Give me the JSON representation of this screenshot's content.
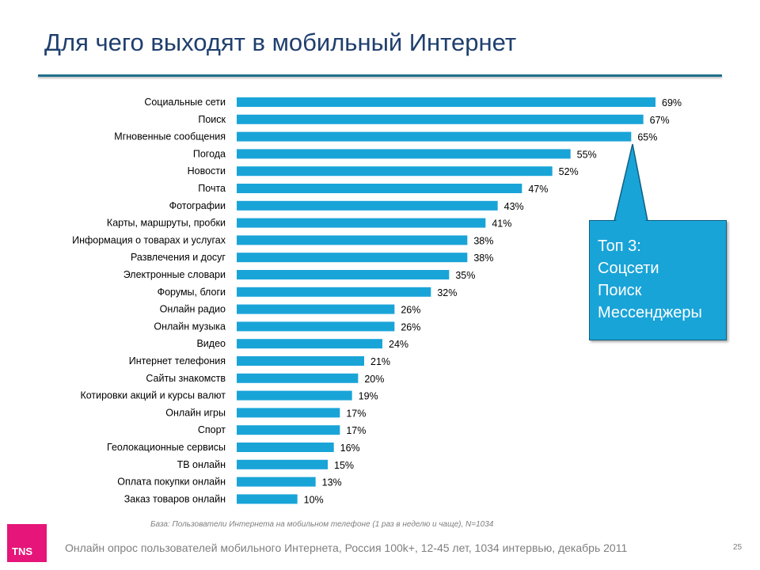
{
  "title": "Для чего выходят в мобильный Интернет",
  "chart_data": {
    "type": "bar",
    "orientation": "horizontal",
    "categories": [
      "Социальные сети",
      "Поиск",
      "Мгновенные сообщения",
      "Погода",
      "Новости",
      "Почта",
      "Фотографии",
      "Карты, маршруты, пробки",
      "Информация о товарах и услугах",
      "Развлечения и досуг",
      "Электронные словари",
      "Форумы, блоги",
      "Онлайн радио",
      "Онлайн музыка",
      "Видео",
      "Интернет телефония",
      "Сайты знакомств",
      "Котировки акций и курсы валют",
      "Онлайн игры",
      "Спорт",
      "Геолокационные сервисы",
      "ТВ онлайн",
      "Оплата покупки онлайн",
      "Заказ товаров онлайн"
    ],
    "values": [
      69,
      67,
      65,
      55,
      52,
      47,
      43,
      41,
      38,
      38,
      35,
      32,
      26,
      26,
      24,
      21,
      20,
      19,
      17,
      17,
      16,
      15,
      13,
      10
    ],
    "value_labels": [
      "69%",
      "67%",
      "65%",
      "55%",
      "52%",
      "47%",
      "43%",
      "41%",
      "38%",
      "38%",
      "35%",
      "32%",
      "26%",
      "26%",
      "24%",
      "21%",
      "20%",
      "19%",
      "17%",
      "17%",
      "16%",
      "15%",
      "13%",
      "10%"
    ],
    "unit": "%",
    "xlim": [
      0,
      69
    ],
    "color": "#19a4d8"
  },
  "callout": {
    "lines": [
      "Топ 3:",
      "Соцсети",
      "Поиск",
      "Мессенджеры"
    ],
    "color": "#19a4d8"
  },
  "base_note": "База: Пользователи Интернета на мобильном телефоне (1 раз в неделю и чаще), N=1034",
  "logo_text": "TNS",
  "footer": "Онлайн опрос пользователей мобильного Интернета, Россия 100k+, 12-45 лет, 1034 интервью, декабрь 2011",
  "page_number": "25"
}
